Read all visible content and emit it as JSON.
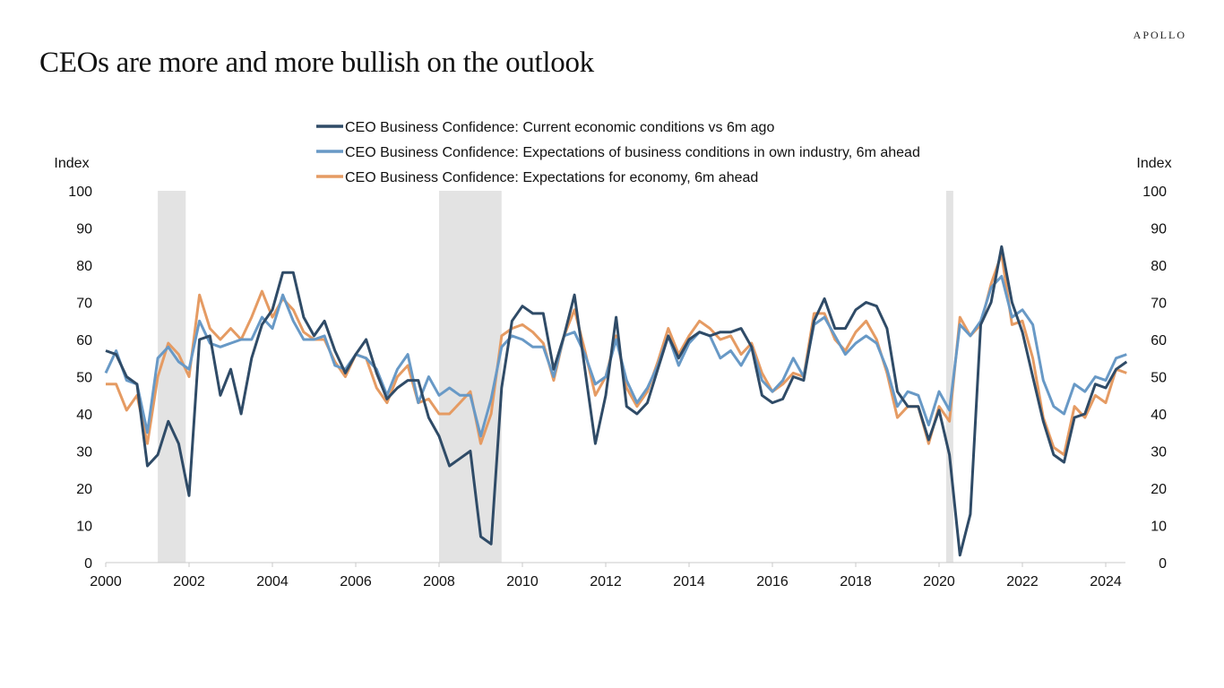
{
  "header": {
    "title": "CEOs are more and more bullish on the outlook",
    "brand": "APOLLO"
  },
  "chart_data": {
    "type": "line",
    "title": "CEOs are more and more bullish on the outlook",
    "ylabel_left": "Index",
    "ylabel_right": "Index",
    "xlabel": "",
    "ylim": [
      0,
      100
    ],
    "xlim": [
      2000,
      2024.5
    ],
    "y_ticks": [
      0,
      10,
      20,
      30,
      40,
      50,
      60,
      70,
      80,
      90,
      100
    ],
    "x_ticks": [
      2000,
      2002,
      2004,
      2006,
      2008,
      2010,
      2012,
      2014,
      2016,
      2018,
      2020,
      2022,
      2024
    ],
    "grid": false,
    "legend_position": "top-center",
    "frequency": "quarterly",
    "x_start": 2000,
    "x_step": 0.25,
    "recession_shading": [
      {
        "start": 2001.25,
        "end": 2001.92
      },
      {
        "start": 2008.0,
        "end": 2009.5
      },
      {
        "start": 2020.17,
        "end": 2020.33
      }
    ],
    "series": [
      {
        "name": "CEO Business Confidence: Current economic conditions vs 6m ago",
        "color": "#2f4b67",
        "values": [
          57,
          56,
          50,
          48,
          26,
          29,
          38,
          32,
          18,
          60,
          61,
          45,
          52,
          40,
          55,
          64,
          68,
          78,
          78,
          66,
          61,
          65,
          57,
          51,
          56,
          60,
          51,
          44,
          47,
          49,
          49,
          39,
          34,
          26,
          28,
          30,
          7,
          5,
          47,
          65,
          69,
          67,
          67,
          52,
          61,
          72,
          52,
          32,
          45,
          66,
          42,
          40,
          43,
          52,
          61,
          55,
          60,
          62,
          61,
          62,
          62,
          63,
          58,
          45,
          43,
          44,
          50,
          49,
          65,
          71,
          63,
          63,
          68,
          70,
          69,
          63,
          46,
          42,
          42,
          33,
          41,
          29,
          2,
          13,
          64,
          70,
          85,
          70,
          62,
          50,
          38,
          29,
          27,
          39,
          40,
          48,
          47,
          52,
          54
        ]
      },
      {
        "name": "CEO Business Confidence: Expectations of business conditions in own industry, 6m ahead",
        "color": "#6899c6",
        "values": [
          51,
          57,
          49,
          48,
          35,
          55,
          58,
          54,
          52,
          65,
          59,
          58,
          59,
          60,
          60,
          66,
          63,
          72,
          65,
          60,
          60,
          61,
          53,
          52,
          56,
          55,
          52,
          45,
          52,
          56,
          43,
          50,
          45,
          47,
          45,
          45,
          34,
          44,
          58,
          61,
          60,
          58,
          58,
          50,
          61,
          62,
          56,
          48,
          50,
          60,
          49,
          43,
          47,
          53,
          61,
          53,
          59,
          62,
          61,
          55,
          57,
          53,
          58,
          49,
          46,
          49,
          55,
          50,
          64,
          66,
          61,
          56,
          59,
          61,
          59,
          52,
          42,
          46,
          45,
          37,
          46,
          41,
          64,
          61,
          65,
          74,
          77,
          66,
          68,
          64,
          49,
          42,
          40,
          48,
          46,
          50,
          49,
          55,
          56
        ]
      },
      {
        "name": "CEO Business Confidence: Expectations for economy, 6m ahead",
        "color": "#e59b63",
        "values": [
          48,
          48,
          41,
          45,
          32,
          50,
          59,
          56,
          50,
          72,
          63,
          60,
          63,
          60,
          66,
          73,
          66,
          71,
          68,
          62,
          60,
          60,
          54,
          50,
          56,
          55,
          47,
          43,
          50,
          53,
          43,
          44,
          40,
          40,
          43,
          46,
          32,
          40,
          61,
          63,
          64,
          62,
          59,
          49,
          61,
          68,
          57,
          45,
          50,
          61,
          47,
          42,
          46,
          54,
          63,
          56,
          61,
          65,
          63,
          60,
          61,
          56,
          59,
          51,
          46,
          48,
          51,
          50,
          67,
          67,
          60,
          57,
          62,
          65,
          60,
          51,
          39,
          42,
          42,
          32,
          42,
          38,
          66,
          61,
          64,
          75,
          83,
          64,
          65,
          55,
          39,
          31,
          29,
          42,
          39,
          45,
          43,
          52,
          51
        ]
      }
    ]
  }
}
